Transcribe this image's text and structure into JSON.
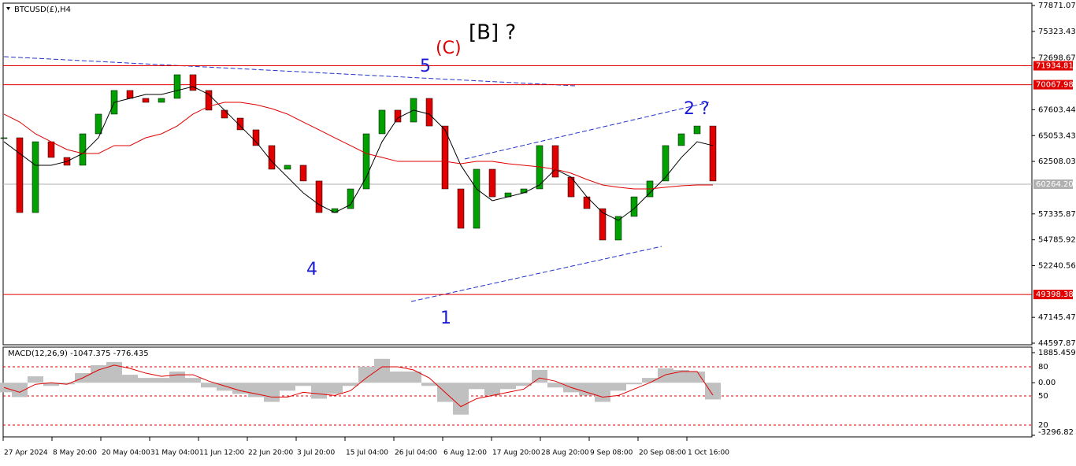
{
  "header": "BTCUSD(£),H4",
  "chart_data": [
    {
      "type": "candlestick",
      "ylim": [
        44597.87,
        77871.07
      ],
      "yticks": [
        77871.07,
        75323.43,
        72698.67,
        67603.44,
        65053.43,
        62508.03,
        57335.87,
        54785.92,
        52240.56,
        47145.47,
        44597.87
      ],
      "up_color": "#00a000",
      "down_color": "#e00000",
      "series": [
        {
          "color": "#000000",
          "values": [
            64840,
            57470,
            64450,
            62900,
            62130,
            65230,
            67170,
            69500,
            68720,
            68330,
            68720,
            71050,
            69500,
            67560,
            66780,
            65620,
            64070,
            61740,
            62130,
            60580,
            57470,
            57860,
            59800,
            65230,
            67560,
            66390,
            68720,
            66000,
            59800,
            55920,
            61740,
            59020,
            59410,
            59800,
            64070,
            60960,
            59020,
            57860,
            54760,
            57090,
            59020,
            60580,
            64070,
            65230,
            66000,
            60580
          ]
        },
        {
          "color": "#000000",
          "values": [
            64450,
            63290,
            62130,
            62130,
            62510,
            63290,
            64840,
            68330,
            68720,
            69110,
            69110,
            69500,
            69880,
            69110,
            67560,
            66000,
            64450,
            62510,
            60960,
            59410,
            58250,
            57470,
            58250,
            60960,
            64450,
            66780,
            67560,
            67170,
            65620,
            62130,
            59800,
            58640,
            59020,
            59410,
            60190,
            61740,
            60960,
            59020,
            57470,
            56700,
            57860,
            59410,
            60960,
            62900,
            64450,
            64070
          ]
        },
        {
          "color": "#e00000",
          "values": [
            67170,
            66390,
            65230,
            64450,
            63680,
            63290,
            63290,
            64070,
            64070,
            64840,
            65230,
            66000,
            67170,
            67940,
            68330,
            68330,
            68100,
            67710,
            67170,
            66390,
            65620,
            64840,
            64070,
            63290,
            62900,
            62510,
            62510,
            62510,
            62510,
            62280,
            62510,
            62510,
            62280,
            62130,
            61970,
            61740,
            61350,
            60730,
            60190,
            59960,
            59800,
            59800,
            59960,
            60110,
            60190,
            60190
          ]
        }
      ],
      "levels": [
        71934.81,
        70067.98,
        49398.38,
        {
          "value": 60264.2,
          "label": "60264.20"
        }
      ],
      "level_colors": [
        "#e00000",
        "#e00000",
        "#e00000",
        "#b0b0b0"
      ],
      "annotations": [
        {
          "text": "[B] ?",
          "color": "#000000"
        },
        {
          "text": "(C)",
          "color": "#e00000"
        },
        {
          "text": "5",
          "color": "#1a1ad6"
        },
        {
          "text": "4",
          "color": "#1a1ad6"
        },
        {
          "text": "1",
          "color": "#1a1ad6"
        },
        {
          "text": "2 ?",
          "color": "#1a1ad6"
        }
      ]
    },
    {
      "type": "macd",
      "title": "MACD(12,26,9) -1047.375 -776.435",
      "ylim": [
        -3296.82,
        1885.459
      ],
      "yticks": [
        1885.459,
        {
          "value": 0,
          "label": "0.00"
        },
        -3296.82
      ],
      "level_labels": [
        "80",
        "50",
        "20"
      ],
      "series": [
        {
          "color": "#c0c0c0",
          "values": [
            -600,
            -900,
            400,
            -200,
            -100,
            600,
            1100,
            1300,
            500,
            300,
            300,
            700,
            300,
            -300,
            -500,
            -700,
            -900,
            -1200,
            -500,
            -200,
            -1000,
            -700,
            -200,
            1000,
            1500,
            700,
            700,
            -200,
            -1200,
            -2000,
            -400,
            -800,
            -400,
            -200,
            800,
            -300,
            -600,
            -800,
            -1200,
            -500,
            -100,
            300,
            900,
            800,
            700,
            -1047.375
          ]
        },
        {
          "color": "#e00000",
          "values": [
            -300,
            -600,
            -100,
            0,
            -100,
            300,
            800,
            1100,
            900,
            600,
            400,
            500,
            500,
            100,
            -200,
            -500,
            -700,
            -900,
            -900,
            -600,
            -700,
            -800,
            -500,
            300,
            1000,
            1000,
            800,
            300,
            -600,
            -1500,
            -1000,
            -800,
            -600,
            -400,
            300,
            100,
            -300,
            -600,
            -900,
            -800,
            -400,
            0,
            500,
            700,
            700,
            -776.435
          ]
        }
      ]
    }
  ],
  "time_labels": [
    "27 Apr 2024",
    "8 May 20:00",
    "20 May 04:00",
    "31 May 04:00",
    "11 Jun 12:00",
    "22 Jun 20:00",
    "3 Jul 20:00",
    "15 Jul 04:00",
    "26 Jul 04:00",
    "6 Aug 12:00",
    "17 Aug 20:00",
    "28 Aug 20:00",
    "9 Sep 08:00",
    "20 Sep 08:00",
    "1 Oct 16:00"
  ]
}
